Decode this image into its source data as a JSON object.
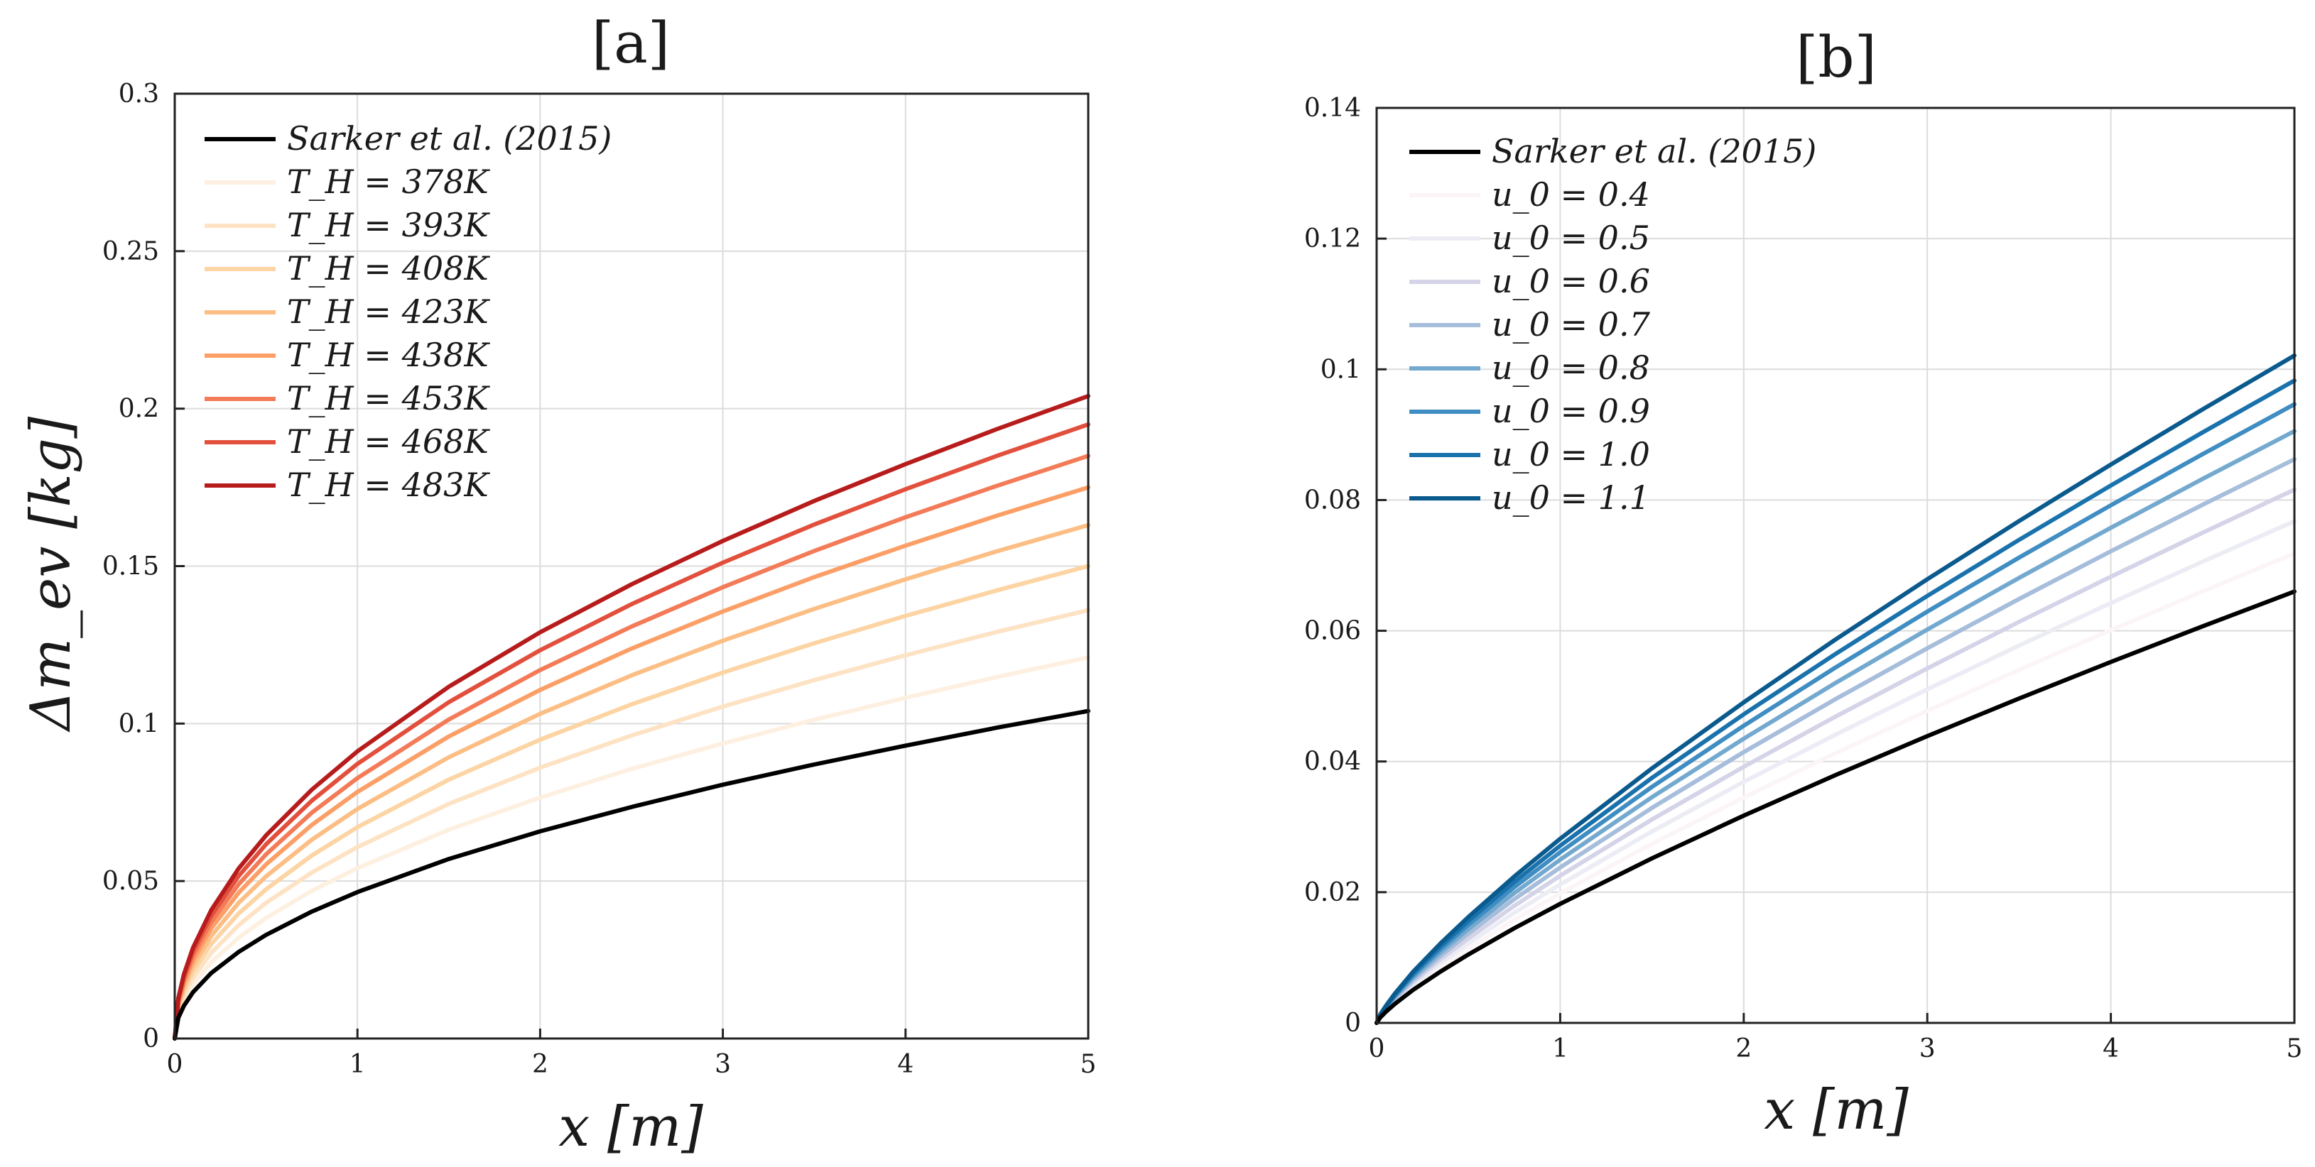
{
  "chart_data": [
    {
      "type": "line",
      "title": "[a]",
      "xlabel": "x [m]",
      "ylabel": "Δm_ev [kg]",
      "xlim": [
        0,
        5
      ],
      "ylim": [
        0,
        0.3
      ],
      "xticks": [
        0,
        1,
        2,
        3,
        4,
        5
      ],
      "xtick_labels": [
        "0",
        "1",
        "2",
        "3",
        "4",
        "5"
      ],
      "yticks": [
        0,
        0.05,
        0.1,
        0.15,
        0.2,
        0.25,
        0.3
      ],
      "ytick_labels": [
        "0",
        "0.05",
        "0.1",
        "0.15",
        "0.2",
        "0.25",
        "0.3"
      ],
      "grid": true,
      "legend_position": "top-left",
      "x": [
        0,
        0.02,
        0.05,
        0.1,
        0.2,
        0.35,
        0.5,
        0.75,
        1,
        1.5,
        2,
        2.5,
        3,
        3.5,
        4,
        4.5,
        5
      ],
      "series": [
        {
          "name": "Sarker et al. (2015)",
          "color": "#000000",
          "values": [
            0,
            0.0066,
            0.0104,
            0.0147,
            0.0208,
            0.0275,
            0.0329,
            0.0403,
            0.0465,
            0.057,
            0.0658,
            0.0735,
            0.0806,
            0.087,
            0.093,
            0.0987,
            0.104
          ]
        },
        {
          "name": "T_H = 378K",
          "color": "#fef0e1",
          "values": [
            0,
            0.0077,
            0.0121,
            0.0171,
            0.0242,
            0.032,
            0.0383,
            0.0469,
            0.0541,
            0.0663,
            0.0765,
            0.0856,
            0.0937,
            0.1012,
            0.1082,
            0.1148,
            0.121
          ]
        },
        {
          "name": "T_H = 393K",
          "color": "#fde3c4",
          "values": [
            0,
            0.0086,
            0.0136,
            0.0192,
            0.0272,
            0.036,
            0.0431,
            0.0527,
            0.0608,
            0.0745,
            0.086,
            0.0962,
            0.1054,
            0.1138,
            0.1217,
            0.1291,
            0.136
          ]
        },
        {
          "name": "T_H = 408K",
          "color": "#fdd4a3",
          "values": [
            0,
            0.0095,
            0.015,
            0.0212,
            0.03,
            0.0397,
            0.0474,
            0.0581,
            0.0671,
            0.0822,
            0.0949,
            0.1061,
            0.1162,
            0.1255,
            0.1342,
            0.1423,
            0.15
          ]
        },
        {
          "name": "T_H = 423K",
          "color": "#fcbe84",
          "values": [
            0,
            0.0103,
            0.0163,
            0.0231,
            0.0326,
            0.0431,
            0.0515,
            0.0631,
            0.0729,
            0.0893,
            0.1031,
            0.1153,
            0.1263,
            0.1364,
            0.1458,
            0.1547,
            0.163
          ]
        },
        {
          "name": "T_H = 438K",
          "color": "#fb9f67",
          "values": [
            0,
            0.0111,
            0.0175,
            0.0247,
            0.035,
            0.0463,
            0.0553,
            0.0678,
            0.0783,
            0.0959,
            0.1107,
            0.1238,
            0.1356,
            0.1465,
            0.1565,
            0.166,
            0.175
          ]
        },
        {
          "name": "T_H = 453K",
          "color": "#f37b58",
          "values": [
            0,
            0.0117,
            0.0185,
            0.0262,
            0.037,
            0.049,
            0.0585,
            0.0717,
            0.0827,
            0.1013,
            0.117,
            0.1308,
            0.1433,
            0.1548,
            0.1655,
            0.1755,
            0.185
          ]
        },
        {
          "name": "T_H = 468K",
          "color": "#e2503d",
          "values": [
            0,
            0.0123,
            0.0195,
            0.0276,
            0.039,
            0.0516,
            0.0617,
            0.0755,
            0.0872,
            0.1068,
            0.1233,
            0.1379,
            0.1511,
            0.1632,
            0.1744,
            0.185,
            0.195
          ]
        },
        {
          "name": "T_H = 483K",
          "color": "#b71c1c",
          "values": [
            0,
            0.0129,
            0.0204,
            0.0288,
            0.0408,
            0.054,
            0.0645,
            0.079,
            0.0912,
            0.1117,
            0.129,
            0.1442,
            0.158,
            0.1707,
            0.1824,
            0.1935,
            0.204
          ]
        }
      ]
    },
    {
      "type": "line",
      "title": "[b]",
      "xlabel": "x [m]",
      "ylabel": "",
      "xlim": [
        0,
        5
      ],
      "ylim": [
        0,
        0.14
      ],
      "xticks": [
        0,
        1,
        2,
        3,
        4,
        5
      ],
      "xtick_labels": [
        "0",
        "1",
        "2",
        "3",
        "4",
        "5"
      ],
      "yticks": [
        0,
        0.02,
        0.04,
        0.06,
        0.08,
        0.1,
        0.12,
        0.14
      ],
      "ytick_labels": [
        "0",
        "0.02",
        "0.04",
        "0.06",
        "0.08",
        "0.1",
        "0.12",
        "0.14"
      ],
      "grid": true,
      "legend_position": "top-left",
      "x": [
        0,
        0.02,
        0.05,
        0.1,
        0.2,
        0.35,
        0.5,
        0.75,
        1,
        1.5,
        2,
        2.5,
        3,
        3.5,
        4,
        4.5,
        5
      ],
      "series": [
        {
          "name": "Sarker et al. (2015)",
          "color": "#000000",
          "values": [
            0,
            0.00085,
            0.00168,
            0.00292,
            0.00508,
            0.00789,
            0.01047,
            0.01449,
            0.01821,
            0.02518,
            0.03171,
            0.03792,
            0.04388,
            0.04964,
            0.05523,
            0.06068,
            0.066
          ]
        },
        {
          "name": "u_0 = 0.4",
          "color": "#fcf5f8",
          "values": [
            0,
            0.00092,
            0.00182,
            0.00317,
            0.00553,
            0.00859,
            0.01139,
            0.01576,
            0.01981,
            0.0274,
            0.0345,
            0.04126,
            0.04775,
            0.05402,
            0.0601,
            0.06603,
            0.07182
          ]
        },
        {
          "name": "u_0 = 0.5",
          "color": "#ececf4",
          "values": [
            0,
            0.00099,
            0.00195,
            0.00339,
            0.00591,
            0.00918,
            0.01218,
            0.01685,
            0.02118,
            0.02929,
            0.03688,
            0.04411,
            0.05104,
            0.05774,
            0.06424,
            0.07058,
            0.07677
          ]
        },
        {
          "name": "u_0 = 0.6",
          "color": "#d4d3e8",
          "values": [
            0,
            0.00105,
            0.00207,
            0.0036,
            0.00628,
            0.00976,
            0.01294,
            0.01791,
            0.02251,
            0.03113,
            0.03919,
            0.04687,
            0.05424,
            0.06136,
            0.06827,
            0.07501,
            0.08159
          ]
        },
        {
          "name": "u_0 = 0.7",
          "color": "#a6bddb",
          "values": [
            0,
            0.00111,
            0.00219,
            0.00381,
            0.00664,
            0.01031,
            0.01368,
            0.01893,
            0.02379,
            0.0329,
            0.04143,
            0.04954,
            0.05733,
            0.06486,
            0.07216,
            0.07928,
            0.08624
          ]
        },
        {
          "name": "u_0 = 0.8",
          "color": "#74a9cf",
          "values": [
            0,
            0.00116,
            0.0023,
            0.004,
            0.00697,
            0.01083,
            0.01436,
            0.01987,
            0.02498,
            0.03454,
            0.04349,
            0.05201,
            0.06019,
            0.06809,
            0.07576,
            0.08324,
            0.09054
          ]
        },
        {
          "name": "u_0 = 0.9",
          "color": "#3f8dc2",
          "values": [
            0,
            0.00122,
            0.0024,
            0.00418,
            0.00729,
            0.01132,
            0.01501,
            0.02077,
            0.02611,
            0.03611,
            0.04547,
            0.05438,
            0.06293,
            0.07119,
            0.0792,
            0.08702,
            0.09466
          ]
        },
        {
          "name": "u_0 = 1.0",
          "color": "#1a72ad",
          "values": [
            0,
            0.00126,
            0.00249,
            0.00434,
            0.00757,
            0.01175,
            0.01559,
            0.02157,
            0.02711,
            0.03749,
            0.04721,
            0.05646,
            0.06533,
            0.07391,
            0.08223,
            0.09035,
            0.09828
          ]
        },
        {
          "name": "u_0 = 1.1",
          "color": "#0b5a8e",
          "values": [
            0,
            0.00131,
            0.00259,
            0.00451,
            0.00786,
            0.01221,
            0.0162,
            0.02241,
            0.02817,
            0.03895,
            0.04905,
            0.05866,
            0.06788,
            0.07679,
            0.08543,
            0.09387,
            0.10211
          ]
        }
      ]
    }
  ]
}
